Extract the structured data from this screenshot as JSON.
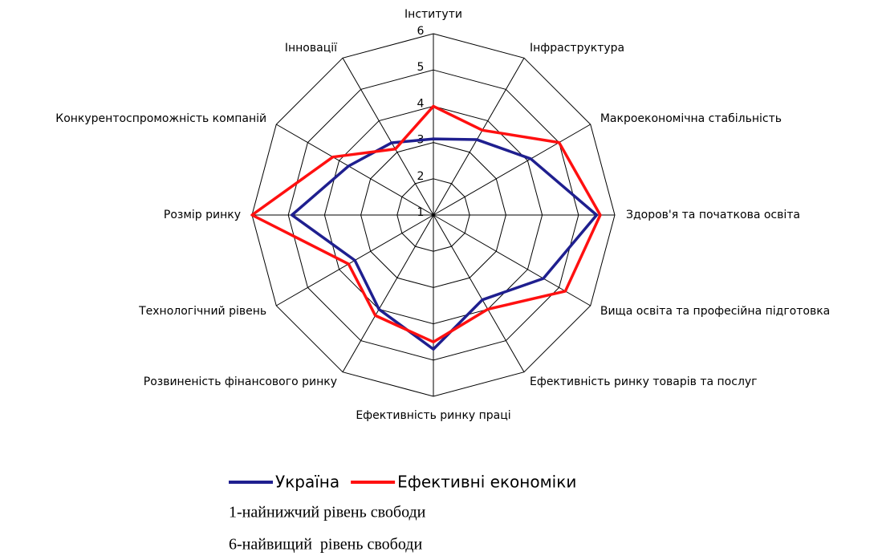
{
  "chart_data": {
    "type": "radar",
    "categories": [
      "Інститути",
      "Інфраструктура",
      "Макроекономічна стабільність",
      "Здоров'я та початкова освіта",
      "Вища освіта та професійна підготовка",
      "Ефективність ринку товарів та послуг",
      "Ефективність ринку праці",
      "Розвиненість фінансового ринку",
      "Технологічний рівень",
      "Розмір ринку",
      "Конкурентоспроможність компаній",
      "Інновації"
    ],
    "series": [
      {
        "name": "Україна",
        "color": "#1f1f8f",
        "values": [
          3.1,
          3.4,
          4.1,
          5.5,
          4.5,
          3.7,
          4.7,
          4.0,
          3.5,
          4.9,
          3.7,
          3.3
        ]
      },
      {
        "name": "Ефективні економіки",
        "color": "#ff1010",
        "values": [
          4.0,
          3.7,
          5.0,
          5.6,
          5.2,
          4.0,
          4.5,
          4.2,
          3.7,
          6.0,
          4.2,
          3.1
        ]
      }
    ],
    "rlim": [
      1,
      6
    ],
    "rticks": [
      1,
      2,
      3,
      4,
      5,
      6
    ],
    "grid": true,
    "legend": "bottom",
    "notes": [
      "1-найнижчий рівень свободи",
      "6-найвищий  рівень свободи"
    ]
  }
}
